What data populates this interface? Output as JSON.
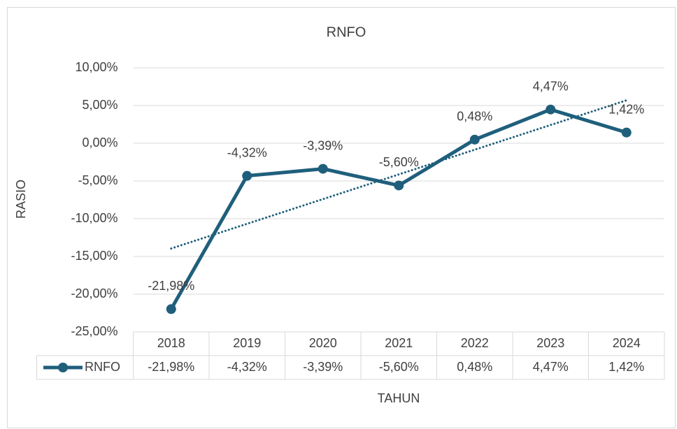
{
  "chart_data": {
    "type": "line",
    "title": "RNFO",
    "y_label": "RASIO",
    "x_label": "TAHUN",
    "categories": [
      "2018",
      "2019",
      "2020",
      "2021",
      "2022",
      "2023",
      "2024"
    ],
    "series": [
      {
        "name": "RNFO",
        "color": "#1f5f7c",
        "values": [
          -21.98,
          -4.32,
          -3.39,
          -5.6,
          0.48,
          4.47,
          1.42
        ],
        "value_labels": [
          "-21,98%",
          "-4,32%",
          "-3,39%",
          "-5,60%",
          "0,48%",
          "4,47%",
          "1,42%"
        ]
      }
    ],
    "ylim": [
      -25,
      10
    ],
    "yticks": [
      {
        "value": -25,
        "label": "-25,00%"
      },
      {
        "value": -20,
        "label": "-20,00%"
      },
      {
        "value": -15,
        "label": "-15,00%"
      },
      {
        "value": -10,
        "label": "-10,00%"
      },
      {
        "value": -5,
        "label": "-5,00%"
      },
      {
        "value": 0,
        "label": "0,00%"
      },
      {
        "value": 5,
        "label": "5,00%"
      },
      {
        "value": 10,
        "label": "10,00%"
      }
    ],
    "grid": true,
    "trendline": "linear",
    "data_table": true
  }
}
